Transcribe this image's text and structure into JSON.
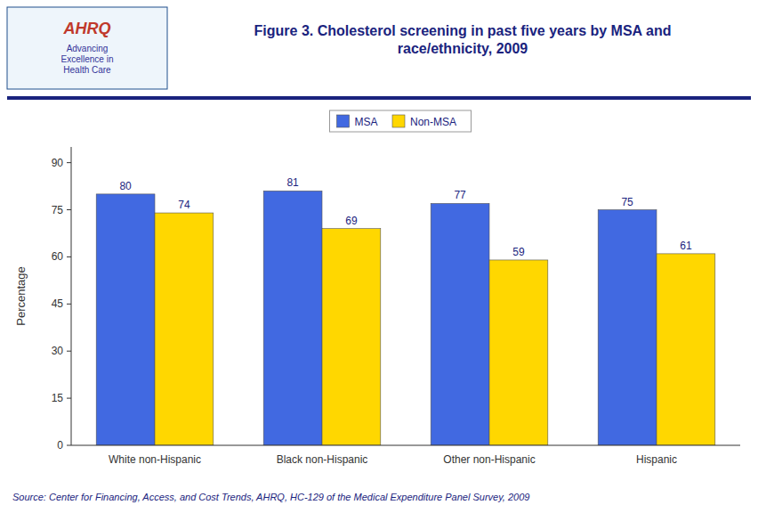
{
  "chart_data": {
    "type": "bar",
    "title": "Figure 3. Cholesterol screening in past five years by MSA and\nrace/ethnicity, 2009",
    "categories": [
      "White non-Hispanic",
      "Black non-Hispanic",
      "Other non-Hispanic",
      "Hispanic"
    ],
    "series": [
      {
        "name": "MSA",
        "color": "#4169E1",
        "values": [
          80,
          81,
          77,
          75
        ]
      },
      {
        "name": "Non-MSA",
        "color": "#FFD700",
        "values": [
          74,
          69,
          59,
          61
        ]
      }
    ],
    "y_label": "Percentage",
    "ylim": [
      0,
      95
    ],
    "yticks": [
      0,
      15,
      30,
      45,
      60,
      75,
      90
    ],
    "grid": false,
    "legend": "top",
    "data_labels": true,
    "annotations": [
      "AHRQ",
      "Advancing\nExcellence in\nHealth Care",
      "Source: Center for Financing, Access, and Cost Trends, AHRQ, HC-129 of the Medical Expenditure Panel Survey,  2009"
    ]
  }
}
